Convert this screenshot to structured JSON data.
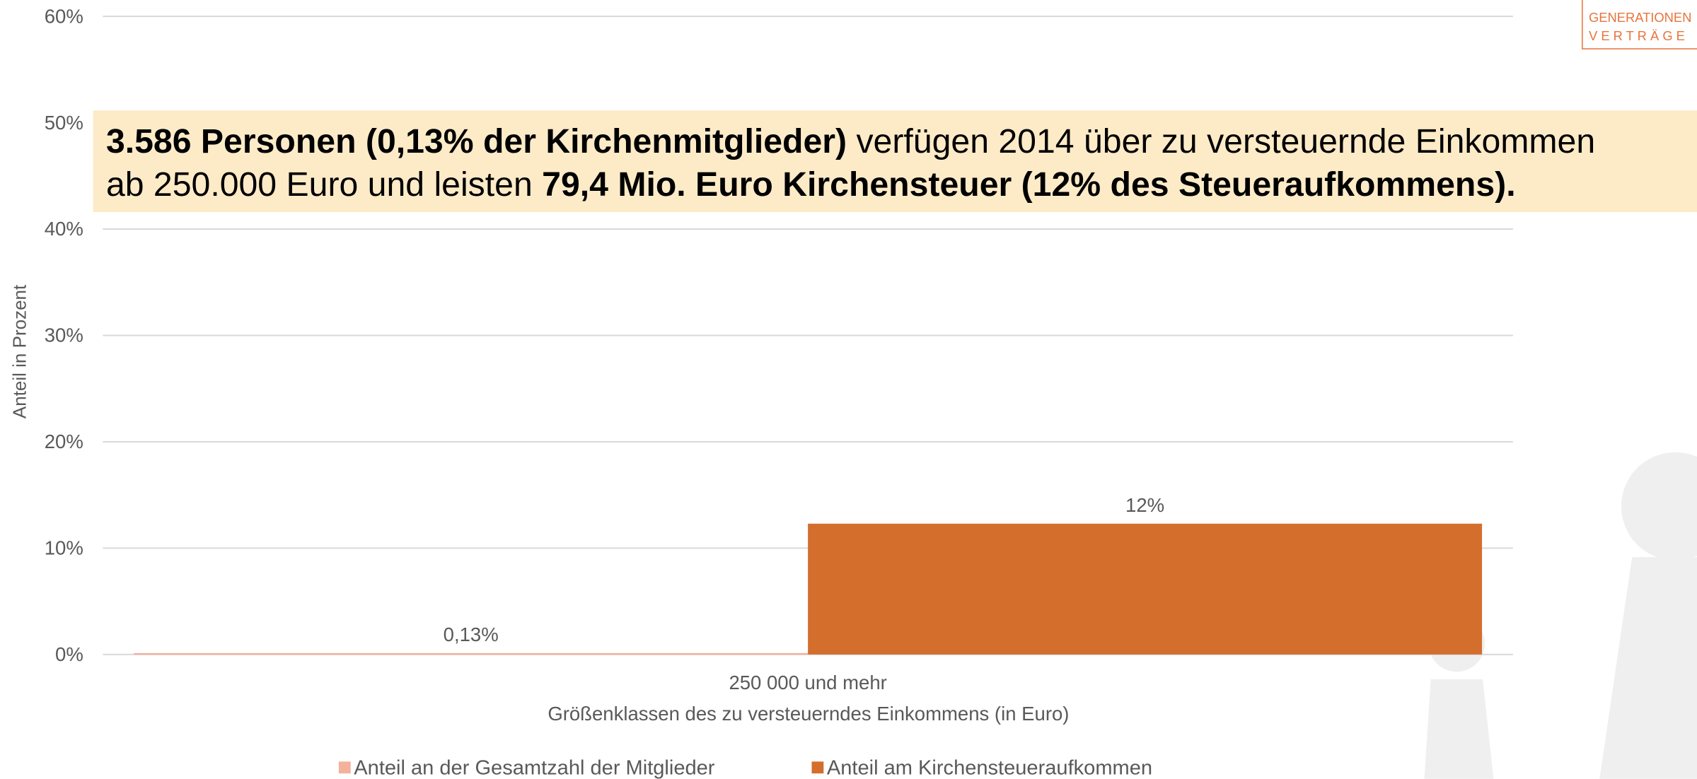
{
  "chart_data": {
    "type": "bar",
    "categories": [
      "250 000 und mehr"
    ],
    "series": [
      {
        "name": "Anteil an der Gesamtzahl der Mitglieder",
        "color": "#f2b29c",
        "values": [
          0.13
        ],
        "value_labels": [
          "0,13%"
        ]
      },
      {
        "name": "Anteil am Kirchensteueraufkommen",
        "color": "#d46e2c",
        "values": [
          12.3
        ],
        "value_labels": [
          "12%"
        ]
      }
    ],
    "ylim": [
      0,
      60
    ],
    "yticks": [
      {
        "value": 0,
        "label": "0%"
      },
      {
        "value": 10,
        "label": "10%"
      },
      {
        "value": 20,
        "label": "20%"
      },
      {
        "value": 30,
        "label": "30%"
      },
      {
        "value": 40,
        "label": "40%"
      },
      {
        "value": 50,
        "label": "50%"
      },
      {
        "value": 60,
        "label": "60%"
      }
    ],
    "grid": true,
    "y_label": "Anteil in Prozent",
    "x_label": "Größenklassen des zu versteuerndes Einkommens (in Euro)",
    "legend": "bottom",
    "annotation": {
      "lines": [
        [
          {
            "text": "3.586 Personen (0,13% der Kirchenmitglieder)",
            "bold": true
          },
          {
            "text": " verfügen 2014 über zu versteuernde Einkommen",
            "bold": false
          }
        ],
        [
          {
            "text": "ab 250.000 Euro und leisten ",
            "bold": false
          },
          {
            "text": "79,4 Mio. Euro Kirchensteuer (12% des Steueraufkommens).",
            "bold": true
          }
        ]
      ]
    },
    "logo": [
      "GENERATIONEN",
      "V E R T R Ä G E"
    ]
  }
}
